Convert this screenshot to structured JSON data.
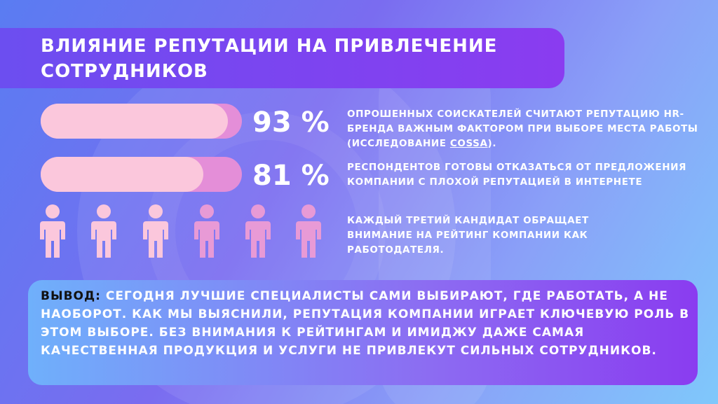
{
  "title": "ВЛИЯНИЕ РЕПУТАЦИИ НА ПРИВЛЕЧЕНИЕ СОТРУДНИКОВ",
  "stats": [
    {
      "value": 93,
      "label": "93 %",
      "text_before": "ОПРОШЕННЫХ СОИСКАТЕЛЕЙ СЧИТАЮТ РЕПУТАЦИЮ HR-БРЕНДА ВАЖНЫМ ФАКТОРОМ ПРИ ВЫБОРЕ МЕСТА РАБОТЫ (ИССЛЕДОВАНИЕ ",
      "link": "COSSA",
      "text_after": ")."
    },
    {
      "value": 81,
      "label": "81 %",
      "text_before": "РЕСПОНДЕНТОВ ГОТОВЫ ОТКАЗАТЬСЯ ОТ ПРЕДЛОЖЕНИЯ КОМПАНИИ С ПЛОХОЙ РЕПУТАЦИЕЙ В ИНТЕРНЕТЕ"
    }
  ],
  "third_note": "КАЖДЫЙ ТРЕТИЙ КАНДИДАТ ОБРАЩАЕТ ВНИМАНИЕ НА РЕЙТИНГ КОМПАНИИ КАК РАБОТОДАТЕЛЯ.",
  "conclusion": {
    "label": "ВЫВОД:",
    "text": " СЕГОДНЯ ЛУЧШИЕ СПЕЦИАЛИСТЫ САМИ ВЫБИРАЮТ, ГДЕ РАБОТАТЬ, А НЕ НАОБОРОТ. КАК МЫ ВЫЯСНИЛИ, РЕПУТАЦИЯ КОМПАНИИ ИГРАЕТ КЛЮЧЕВУЮ РОЛЬ В ЭТОМ ВЫБОРЕ. БЕЗ ВНИМАНИЯ К РЕЙТИНГАМ И ИМИДЖУ ДАЖЕ САМАЯ КАЧЕСТВЕННАЯ ПРОДУКЦИЯ И УСЛУГИ НЕ ПРИВЛЕКУТ СИЛЬНЫХ СОТРУДНИКОВ."
  }
}
